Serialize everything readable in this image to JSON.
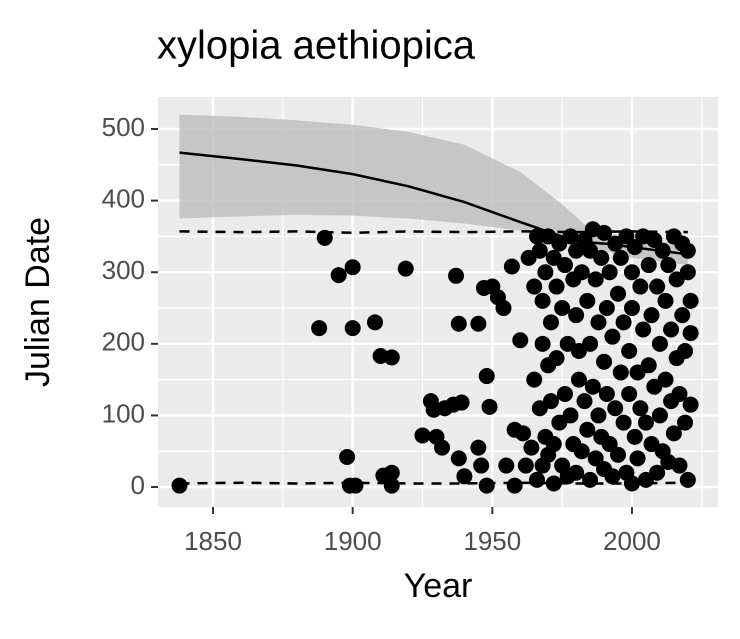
{
  "chart_data": {
    "type": "scatter",
    "title": "xylopia aethiopica",
    "x_label": "Year",
    "y_label": "Julian Date",
    "xlim": [
      1830.3,
      2030.8
    ],
    "ylim": [
      -27.9,
      544.7
    ],
    "xticks": [
      1850,
      1900,
      1950,
      2000
    ],
    "yticks": [
      0,
      100,
      200,
      300,
      400,
      500
    ],
    "grid": true,
    "points": {
      "color": "#000000",
      "x": [
        1838,
        1888,
        1890,
        1895,
        1898,
        1899,
        1900,
        1900,
        1901,
        1908,
        1910,
        1911,
        1914,
        1914,
        1914,
        1919,
        1925,
        1928,
        1929,
        1930,
        1932,
        1933,
        1936,
        1937,
        1938,
        1938,
        1939,
        1940,
        1945,
        1945,
        1946,
        1947,
        1948,
        1949,
        1948,
        1950,
        1952,
        1954,
        1955,
        1957,
        1958,
        1958,
        1960,
        1961,
        1962,
        1963,
        1964,
        1965,
        1965,
        1966,
        1966,
        1967,
        1967,
        1968,
        1968,
        1968,
        1969,
        1969,
        1970,
        1970,
        1970,
        1971,
        1971,
        1972,
        1972,
        1972,
        1973,
        1973,
        1974,
        1974,
        1975,
        1975,
        1976,
        1976,
        1977,
        1977,
        1978,
        1978,
        1979,
        1979,
        1980,
        1980,
        1980,
        1981,
        1981,
        1982,
        1982,
        1983,
        1983,
        1984,
        1984,
        1985,
        1985,
        1985,
        1986,
        1986,
        1987,
        1987,
        1988,
        1988,
        1989,
        1989,
        1990,
        1990,
        1990,
        1991,
        1991,
        1992,
        1992,
        1993,
        1993,
        1994,
        1994,
        1995,
        1995,
        1996,
        1996,
        1997,
        1997,
        1998,
        1998,
        1999,
        1999,
        2000,
        2000,
        2000,
        2001,
        2001,
        2002,
        2002,
        2003,
        2003,
        2004,
        2004,
        2005,
        2005,
        2006,
        2006,
        2007,
        2007,
        2008,
        2008,
        2009,
        2009,
        2010,
        2010,
        2011,
        2011,
        2012,
        2012,
        2013,
        2013,
        2014,
        2014,
        2015,
        2015,
        2016,
        2016,
        2017,
        2017,
        2018,
        2018,
        2019,
        2019,
        2020,
        2020,
        2020,
        2021,
        2021,
        2021
      ],
      "values": [
        2,
        222,
        348,
        296,
        42,
        2,
        307,
        222,
        2,
        230,
        183,
        16,
        181,
        20,
        2,
        305,
        72,
        120,
        108,
        70,
        55,
        110,
        115,
        295,
        228,
        40,
        118,
        15,
        228,
        55,
        30,
        278,
        155,
        112,
        2,
        280,
        265,
        250,
        30,
        308,
        2,
        80,
        205,
        75,
        30,
        320,
        55,
        150,
        280,
        350,
        10,
        110,
        330,
        30,
        200,
        260,
        70,
        300,
        350,
        170,
        45,
        230,
        120,
        320,
        60,
        5,
        280,
        180,
        340,
        90,
        30,
        250,
        130,
        310,
        200,
        15,
        350,
        100,
        60,
        290,
        240,
        330,
        20,
        150,
        190,
        300,
        50,
        345,
        120,
        80,
        260,
        10,
        200,
        330,
        360,
        140,
        40,
        290,
        230,
        100,
        320,
        70,
        175,
        355,
        25,
        250,
        130,
        300,
        60,
        210,
        15,
        340,
        110,
        270,
        45,
        160,
        320,
        90,
        230,
        350,
        20,
        190,
        130,
        300,
        5,
        250,
        70,
        335,
        160,
        40,
        280,
        110,
        220,
        350,
        90,
        10,
        310,
        170,
        60,
        240,
        140,
        345,
        20,
        280,
        200,
        100,
        330,
        50,
        150,
        260,
        35,
        310,
        120,
        220,
        350,
        75,
        180,
        290,
        30,
        130,
        340,
        240,
        90,
        190,
        300,
        10,
        330,
        115,
        260,
        215
      ]
    },
    "ribbon": {
      "color": "#bdbdbd",
      "x": [
        1838,
        1860,
        1880,
        1900,
        1920,
        1940,
        1960,
        1975,
        1985,
        2000,
        2020
      ],
      "upper": [
        520,
        517,
        512,
        506,
        496,
        478,
        440,
        395,
        360,
        345,
        340
      ],
      "lower": [
        375,
        378,
        380,
        379,
        375,
        368,
        358,
        350,
        335,
        320,
        310
      ]
    },
    "smooth": {
      "color": "#000000",
      "x": [
        1838,
        1860,
        1880,
        1900,
        1920,
        1940,
        1960,
        1980,
        1990,
        2000,
        2020
      ],
      "values": [
        467,
        458,
        449,
        437,
        420,
        398,
        370,
        343,
        340,
        335,
        325
      ]
    },
    "quantile_lines": [
      {
        "color": "#000000",
        "x": [
          1838,
          1860,
          1880,
          1900,
          1920,
          1940,
          1960,
          1980,
          2000,
          2020
        ],
        "values": [
          357,
          356,
          357,
          355,
          357,
          356,
          357,
          356,
          357,
          356
        ]
      },
      {
        "color": "#000000",
        "x": [
          1838,
          1860,
          1880,
          1900,
          1920,
          1940,
          1960,
          1980,
          2000,
          2020
        ],
        "values": [
          5,
          6,
          5,
          6,
          5,
          5,
          6,
          5,
          5,
          6
        ]
      }
    ]
  }
}
